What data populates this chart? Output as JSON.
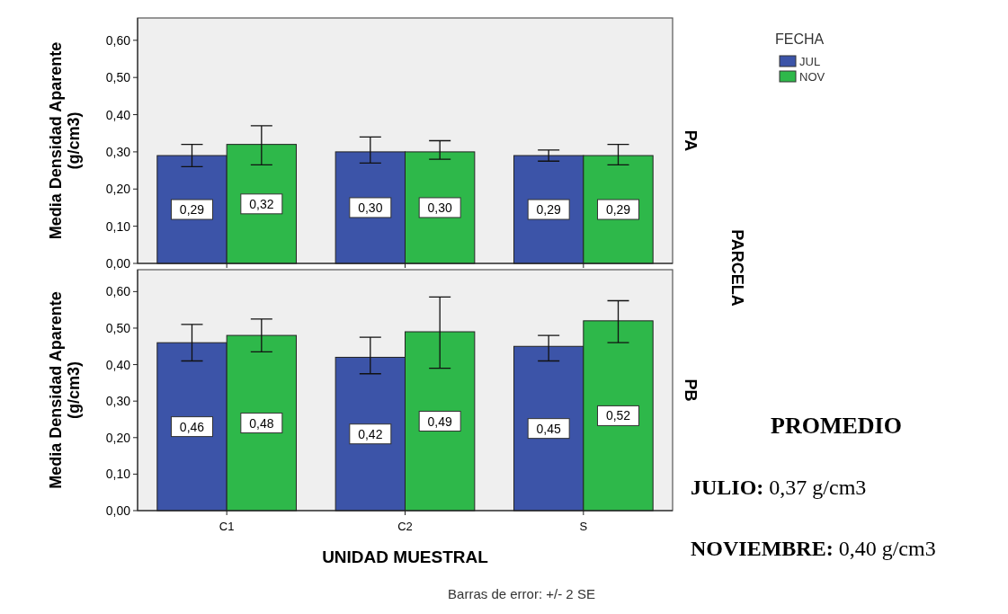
{
  "chart_data": [
    {
      "type": "bar",
      "ylabel": "Media Densidad Aparente (g/cm3)",
      "legend_title": "FECHA",
      "legend": "top right",
      "categories": [
        null,
        null,
        null
      ],
      "ylim": [
        0,
        0.66
      ],
      "yticks": [
        {
          "value": 0,
          "label": "0,00"
        },
        {
          "value": 0.1,
          "label": "0,10"
        },
        {
          "value": 0.2,
          "label": "0,20"
        },
        {
          "value": 0.3,
          "label": "0,30"
        },
        {
          "value": 0.4,
          "label": "0,40"
        },
        {
          "value": 0.5,
          "label": "0,50"
        },
        {
          "value": 0.6,
          "label": "0,60"
        }
      ],
      "series": [
        {
          "name": "JUL",
          "color": "#3c54a8",
          "values": [
            0.29,
            0.3,
            0.29
          ],
          "value_labels": [
            "0,29",
            "0,30",
            "0,29"
          ],
          "errors": [
            [
              0.26,
              0.32
            ],
            [
              0.27,
              0.34
            ],
            [
              0.275,
              0.305
            ]
          ]
        },
        {
          "name": "NOV",
          "color": "#2eb84a",
          "values": [
            0.32,
            0.3,
            0.29
          ],
          "value_labels": [
            "0,32",
            "0,30",
            "0,29"
          ],
          "errors": [
            [
              0.265,
              0.37
            ],
            [
              0.28,
              0.33
            ],
            [
              0.265,
              0.32
            ]
          ]
        }
      ],
      "annotations": [
        "PA",
        "PARCELA"
      ]
    },
    {
      "type": "bar",
      "ylabel": "Media Densidad Aparente (g/cm3)",
      "xlabel": "UNIDAD MUESTRAL",
      "categories": [
        "C1",
        "C2",
        "S"
      ],
      "ylim": [
        0,
        0.66
      ],
      "yticks": [
        {
          "value": 0,
          "label": "0,00"
        },
        {
          "value": 0.1,
          "label": "0,10"
        },
        {
          "value": 0.2,
          "label": "0,20"
        },
        {
          "value": 0.3,
          "label": "0,30"
        },
        {
          "value": 0.4,
          "label": "0,40"
        },
        {
          "value": 0.5,
          "label": "0,50"
        },
        {
          "value": 0.6,
          "label": "0,60"
        }
      ],
      "series": [
        {
          "color": "#3c54a8",
          "values": [
            0.46,
            0.42,
            0.45
          ],
          "value_labels": [
            "0,46",
            "0,42",
            "0,45"
          ],
          "errors": [
            [
              0.41,
              0.51
            ],
            [
              0.375,
              0.475
            ],
            [
              0.41,
              0.48
            ]
          ]
        },
        {
          "color": "#2eb84a",
          "values": [
            0.48,
            0.49,
            0.52
          ],
          "value_labels": [
            "0,48",
            "0,49",
            "0,52"
          ],
          "errors": [
            [
              0.435,
              0.525
            ],
            [
              0.39,
              0.585
            ],
            [
              0.46,
              0.575
            ]
          ]
        }
      ],
      "annotations": [
        "PB",
        "Barras de error: +/- 2 SE",
        "PROMEDIO",
        "JULIO: 0,37 g/cm3",
        "NOVIEMBRE: 0,40 g/cm3"
      ]
    }
  ]
}
